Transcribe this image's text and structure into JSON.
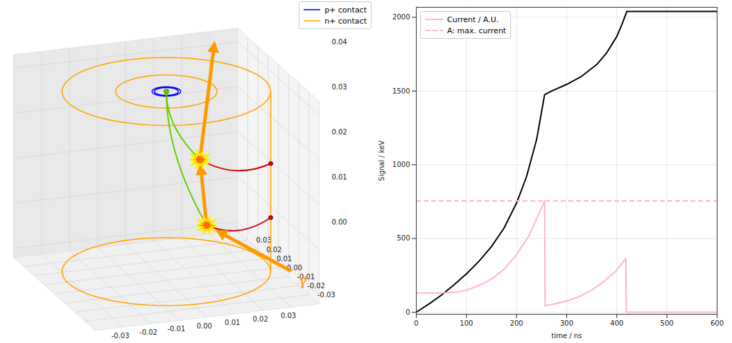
{
  "chart_data": [
    {
      "type": "3d",
      "legend": "upper right",
      "grid": true,
      "xlim": [
        -0.04,
        0.04
      ],
      "ylim": [
        -0.04,
        0.04
      ],
      "zlim": [
        -0.002,
        0.043
      ],
      "xticks": [
        {
          "value": -0.03,
          "label": "-0.03"
        },
        {
          "value": -0.02,
          "label": "-0.02"
        },
        {
          "value": -0.01,
          "label": "-0.01"
        },
        {
          "value": 0,
          "label": "0.00"
        },
        {
          "value": 0.01,
          "label": "0.01"
        },
        {
          "value": 0.02,
          "label": "0.02"
        },
        {
          "value": 0.03,
          "label": "0.03"
        }
      ],
      "yticks": [
        {
          "value": -0.03,
          "label": "-0.03"
        },
        {
          "value": -0.02,
          "label": "-0.02"
        },
        {
          "value": -0.01,
          "label": "-0.01"
        },
        {
          "value": 0,
          "label": "0.00"
        },
        {
          "value": 0.01,
          "label": "0.01"
        },
        {
          "value": 0.02,
          "label": "0.02"
        },
        {
          "value": 0.03,
          "label": "0.03"
        }
      ],
      "zticks": [
        {
          "value": 0,
          "label": "0.00"
        },
        {
          "value": 0.01,
          "label": "0.01"
        },
        {
          "value": 0.02,
          "label": "0.02"
        },
        {
          "value": 0.03,
          "label": "0.03"
        },
        {
          "value": 0.04,
          "label": "0.04"
        }
      ],
      "series": [
        {
          "name": "p+ contact",
          "color": "#0000ff",
          "rings": [
            {
              "r": 0.004,
              "z": 0.04
            },
            {
              "r": 0.0048,
              "z": 0.04
            }
          ]
        },
        {
          "name": "n+ contact",
          "color": "#ffa500",
          "rings": [
            {
              "r": 0.035,
              "z": 0.04
            },
            {
              "r": 0.017,
              "z": 0.04
            },
            {
              "r": 0.035,
              "z": 0
            }
          ],
          "side_line": {
            "x": 0.0329,
            "y": -0.012,
            "z": [
              0,
              0.04
            ]
          }
        }
      ],
      "hits": [
        [
          0.01,
          -0.012,
          0.012
        ],
        [
          0.012,
          0.0,
          0.024
        ]
      ],
      "holes": {
        "color": "#66cc00",
        "end": [
          0,
          0,
          0.04
        ]
      },
      "electrons": {
        "color": "#dd0000",
        "ends": [
          [
            0.0329,
            -0.012,
            0.012
          ],
          [
            0.0329,
            -0.012,
            0.024
          ]
        ]
      },
      "gamma": {
        "label": "γ",
        "color": "#ff9900",
        "start": [
          0.03,
          -0.04,
          0.006
        ],
        "end": [
          0.03,
          0.035,
          0.042
        ]
      }
    },
    {
      "type": "line",
      "legend": "upper left",
      "grid": true,
      "xlabel": "time / ns",
      "ylabel": "Signal / keV",
      "xlim": [
        0,
        600
      ],
      "ylim": [
        -14,
        2068
      ],
      "xticks": [
        0,
        100,
        200,
        300,
        400,
        500,
        600
      ],
      "yticks": [
        0,
        500,
        1000,
        1500,
        2000
      ],
      "series": [
        {
          "color": "#000000",
          "line_style": "solid",
          "x": [
            0,
            25,
            50,
            75,
            100,
            125,
            150,
            175,
            200,
            220,
            240,
            256,
            270,
            300,
            330,
            360,
            380,
            400,
            410,
            420,
            600
          ],
          "values": [
            0,
            55,
            115,
            185,
            260,
            345,
            445,
            570,
            740,
            920,
            1170,
            1475,
            1500,
            1545,
            1600,
            1680,
            1760,
            1870,
            1950,
            2040,
            2040
          ]
        },
        {
          "name": "Current / A.U.",
          "color": "#ffb6c1",
          "line_style": "solid",
          "x": [
            0,
            50,
            80,
            100,
            125,
            150,
            175,
            200,
            225,
            245,
            256,
            257,
            275,
            300,
            325,
            350,
            375,
            400,
            418,
            419,
            600
          ],
          "values": [
            130,
            130,
            135,
            150,
            180,
            225,
            290,
            390,
            520,
            670,
            755,
            45,
            55,
            75,
            105,
            150,
            210,
            285,
            365,
            0,
            0
          ]
        },
        {
          "name": "A: max. current",
          "type": "hline",
          "color": "#ffb6c1",
          "line_style": "dashed",
          "value": 755
        }
      ]
    }
  ]
}
